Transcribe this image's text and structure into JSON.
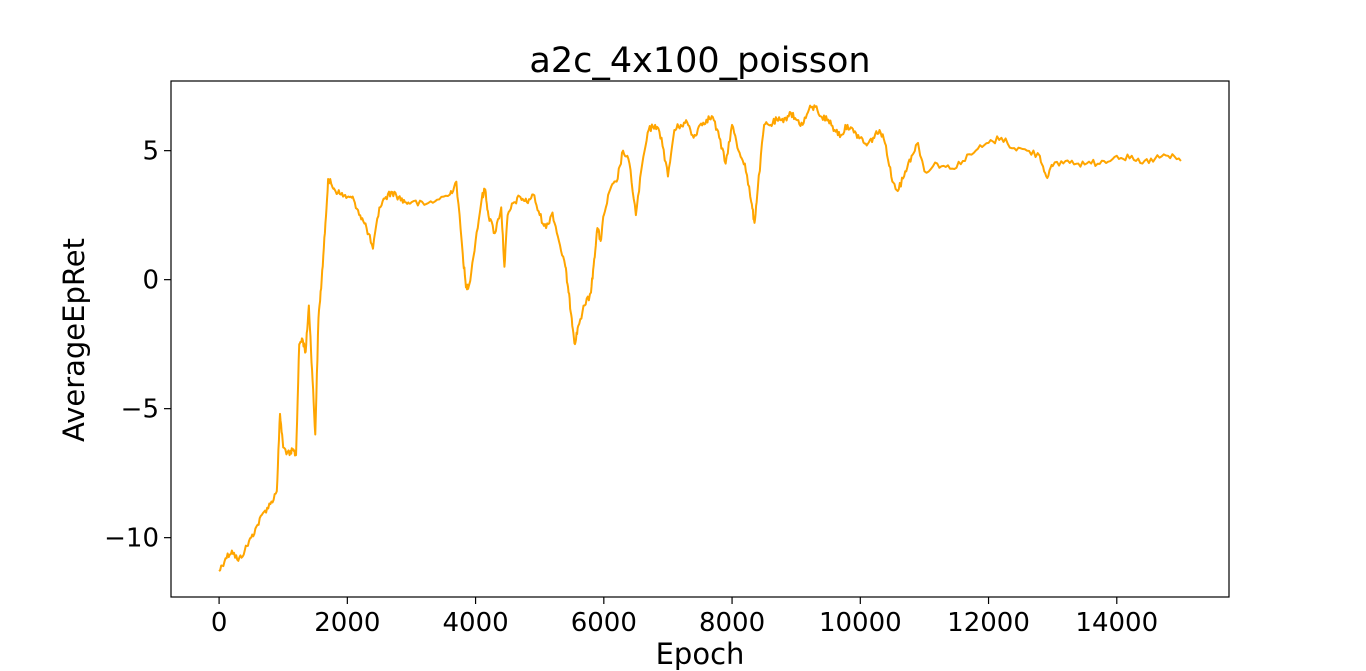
{
  "chart_data": {
    "type": "line",
    "title": "a2c_4x100_poisson",
    "xlabel": "Epoch",
    "ylabel": "AverageEpRet",
    "xlim": [
      -750,
      15750
    ],
    "ylim": [
      -12.3,
      7.7
    ],
    "xticks": [
      0,
      2000,
      4000,
      6000,
      8000,
      10000,
      12000,
      14000
    ],
    "yticks": [
      -10,
      -5,
      0,
      5
    ],
    "ytick_labels": [
      "−10",
      "−5",
      "0",
      "5"
    ],
    "grid": false,
    "series": [
      {
        "color": "#ffa500",
        "x": [
          0,
          100,
          200,
          300,
          400,
          500,
          600,
          700,
          800,
          900,
          950,
          1000,
          1100,
          1150,
          1200,
          1250,
          1300,
          1350,
          1400,
          1450,
          1500,
          1550,
          1600,
          1650,
          1700,
          1750,
          1800,
          1900,
          2000,
          2100,
          2200,
          2300,
          2400,
          2500,
          2600,
          2700,
          2800,
          2900,
          3000,
          3200,
          3400,
          3600,
          3700,
          3800,
          3850,
          3900,
          4000,
          4100,
          4150,
          4200,
          4300,
          4400,
          4450,
          4500,
          4600,
          4700,
          4800,
          4900,
          5000,
          5100,
          5200,
          5300,
          5400,
          5450,
          5500,
          5550,
          5600,
          5700,
          5800,
          5850,
          5900,
          5950,
          6000,
          6100,
          6200,
          6300,
          6400,
          6500,
          6600,
          6700,
          6800,
          6900,
          7000,
          7100,
          7200,
          7300,
          7400,
          7500,
          7600,
          7700,
          7800,
          7900,
          8000,
          8100,
          8200,
          8300,
          8350,
          8400,
          8500,
          8600,
          8700,
          8800,
          8900,
          9000,
          9100,
          9200,
          9300,
          9400,
          9500,
          9600,
          9700,
          9800,
          9900,
          10000,
          10100,
          10200,
          10300,
          10400,
          10500,
          10600,
          10700,
          10800,
          10900,
          11000,
          11200,
          11400,
          11600,
          11800,
          12000,
          12200,
          12400,
          12600,
          12800,
          12900,
          13000,
          13200,
          13400,
          13600,
          13800,
          14000,
          14200,
          14400,
          14600,
          14800,
          15000
        ],
        "y": [
          -11.3,
          -10.8,
          -10.5,
          -10.9,
          -10.5,
          -10.0,
          -9.5,
          -9.0,
          -8.7,
          -8.2,
          -5.2,
          -6.5,
          -6.8,
          -6.6,
          -6.8,
          -2.5,
          -2.3,
          -2.8,
          -1.0,
          -3.5,
          -6.0,
          -1.5,
          0.0,
          1.8,
          3.9,
          3.7,
          3.5,
          3.3,
          3.2,
          3.1,
          2.5,
          2.0,
          1.2,
          2.8,
          3.2,
          3.4,
          3.2,
          3.0,
          3.0,
          2.9,
          3.1,
          3.3,
          3.8,
          1.0,
          -0.3,
          -0.2,
          1.5,
          3.2,
          3.5,
          2.5,
          1.8,
          2.8,
          0.5,
          2.5,
          3.0,
          3.2,
          3.0,
          3.3,
          2.5,
          2.0,
          2.6,
          1.5,
          0.5,
          -0.5,
          -1.5,
          -2.5,
          -1.8,
          -1.0,
          -0.5,
          0.8,
          2.0,
          1.5,
          2.5,
          3.5,
          3.8,
          5.0,
          4.5,
          2.5,
          4.5,
          5.8,
          6.0,
          5.5,
          4.0,
          5.8,
          6.0,
          6.1,
          5.5,
          6.0,
          6.2,
          6.3,
          5.5,
          4.5,
          6.0,
          5.0,
          4.5,
          3.0,
          2.2,
          3.5,
          6.0,
          6.0,
          6.2,
          6.1,
          6.5,
          6.2,
          6.0,
          6.6,
          6.7,
          6.3,
          6.2,
          5.8,
          5.6,
          6.0,
          5.7,
          5.5,
          5.2,
          5.5,
          5.8,
          5.2,
          3.8,
          3.5,
          4.2,
          4.8,
          5.3,
          4.2,
          4.5,
          4.3,
          4.6,
          5.0,
          5.3,
          5.5,
          5.1,
          5.0,
          4.8,
          4.0,
          4.4,
          4.6,
          4.5,
          4.5,
          4.6,
          4.8,
          4.7,
          4.5,
          4.7,
          4.8,
          4.6
        ]
      }
    ]
  }
}
